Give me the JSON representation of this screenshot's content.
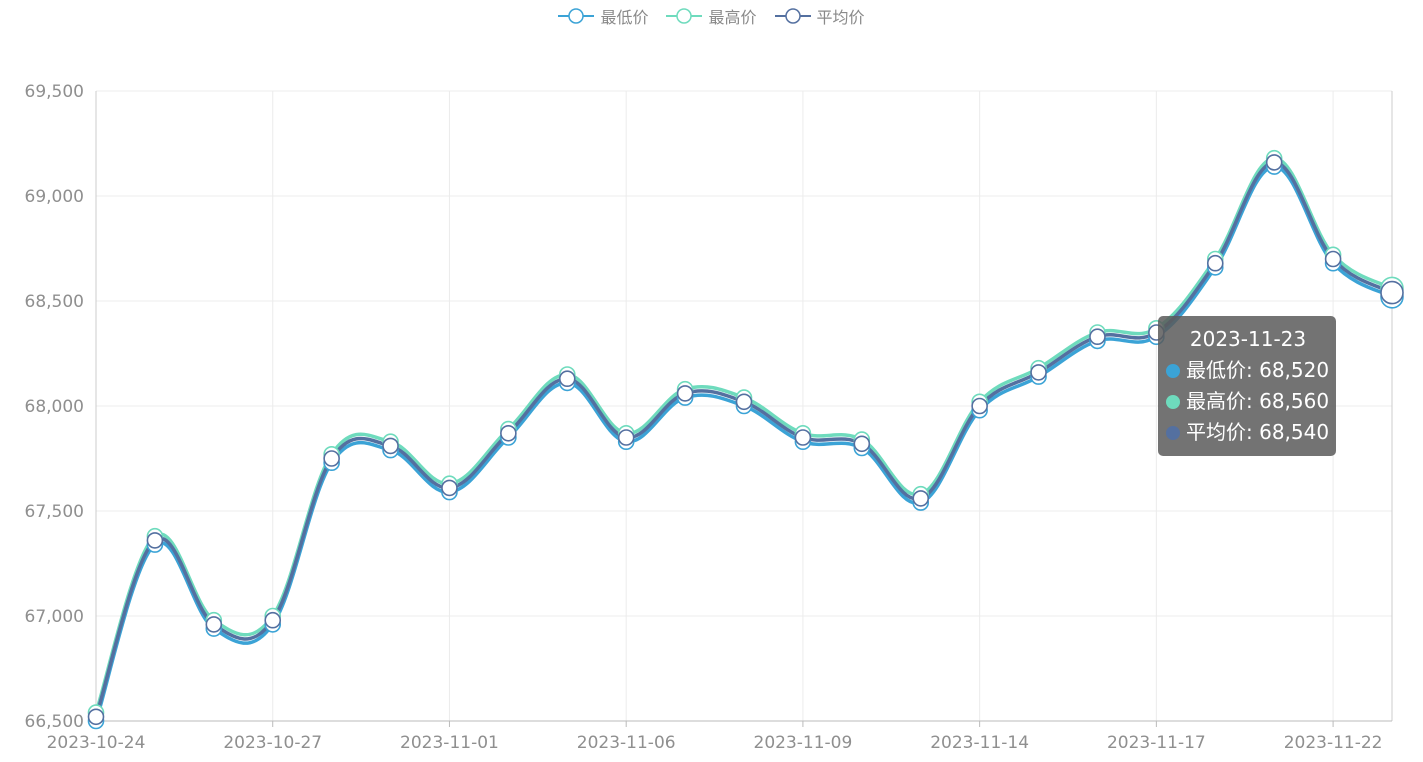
{
  "chart_data": {
    "type": "line",
    "x": [
      "2023-10-24",
      "2023-10-25",
      "2023-10-26",
      "2023-10-27",
      "2023-10-30",
      "2023-10-31",
      "2023-11-01",
      "2023-11-02",
      "2023-11-03",
      "2023-11-06",
      "2023-11-07",
      "2023-11-08",
      "2023-11-09",
      "2023-11-10",
      "2023-11-13",
      "2023-11-14",
      "2023-11-15",
      "2023-11-16",
      "2023-11-17",
      "2023-11-20",
      "2023-11-21",
      "2023-11-22",
      "2023-11-23"
    ],
    "series": [
      {
        "name": "最低价",
        "color": "#3ba3d6",
        "values": [
          66500,
          67340,
          66940,
          66960,
          67730,
          67790,
          67590,
          67850,
          68110,
          67830,
          68040,
          68000,
          67830,
          67800,
          67540,
          67980,
          68140,
          68310,
          68330,
          68660,
          69140,
          68680,
          68520
        ]
      },
      {
        "name": "最高价",
        "color": "#6edbbd",
        "values": [
          66540,
          67380,
          66980,
          67000,
          67770,
          67830,
          67630,
          67890,
          68150,
          67870,
          68080,
          68040,
          67870,
          67840,
          67580,
          68020,
          68180,
          68350,
          68370,
          68700,
          69180,
          68720,
          68560
        ]
      },
      {
        "name": "平均价",
        "color": "#5470a0",
        "values": [
          66520,
          67360,
          66960,
          66980,
          67750,
          67810,
          67610,
          67870,
          68130,
          67850,
          68060,
          68020,
          67850,
          67820,
          67560,
          68000,
          68160,
          68330,
          68350,
          68680,
          69160,
          68700,
          68540
        ]
      }
    ],
    "x_tick_labels": [
      "2023-10-24",
      "2023-10-27",
      "2023-11-01",
      "2023-11-06",
      "2023-11-09",
      "2023-11-14",
      "2023-11-17",
      "2023-11-22"
    ],
    "y_tick_labels": [
      "66,500",
      "67,000",
      "67,500",
      "68,000",
      "68,500",
      "69,000",
      "69,500"
    ],
    "y_ticks": [
      66500,
      67000,
      67500,
      68000,
      68500,
      69000,
      69500
    ],
    "ylim": [
      66500,
      69500
    ],
    "grid": true,
    "legend_position": "top-center",
    "tooltip": {
      "title": "2023-11-23",
      "rows": [
        "最低价: 68,520",
        "最高价: 68,560",
        "平均价: 68,540"
      ]
    }
  }
}
